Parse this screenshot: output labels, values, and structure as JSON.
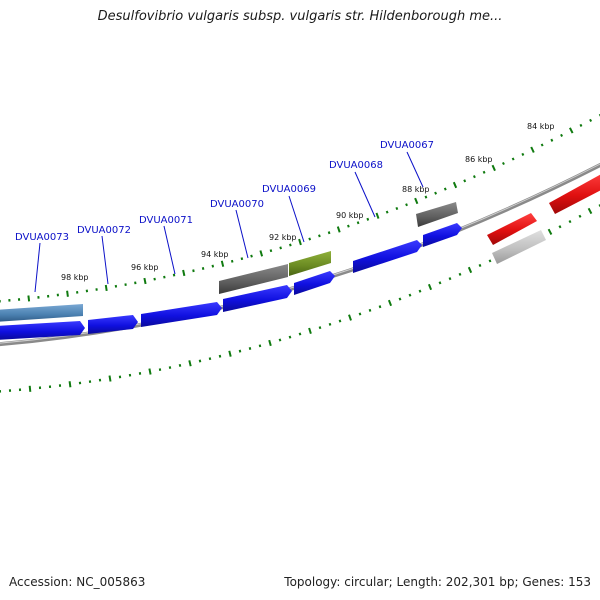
{
  "title": "Desulfovibrio vulgaris subsp. vulgaris str. Hildenborough me...",
  "footer": {
    "accession": "Accession: NC_005863",
    "summary": "Topology: circular; Length: 202,301 bp; Genes: 153"
  },
  "colors": {
    "forward_cds": "#1010e0",
    "reverse_cds": "#e01010",
    "gray_feature": "#6a6a6a",
    "light_gray_feature": "#bdbdbd",
    "green_feature": "#6a8a22",
    "steel_blue_feature": "#4a80b0",
    "backbone": "#888888",
    "tick": "#0f7a0f",
    "gene_label": "#0b10c8",
    "title": "#1a1a1a"
  },
  "tick_labels": [
    "84 kbp",
    "86 kbp",
    "88 kbp",
    "90 kbp",
    "92 kbp",
    "94 kbp",
    "96 kbp",
    "98 kbp"
  ],
  "gene_labels": [
    "DVUA0067",
    "DVUA0068",
    "DVUA0069",
    "DVUA0070",
    "DVUA0071",
    "DVUA0072",
    "DVUA0073"
  ]
}
